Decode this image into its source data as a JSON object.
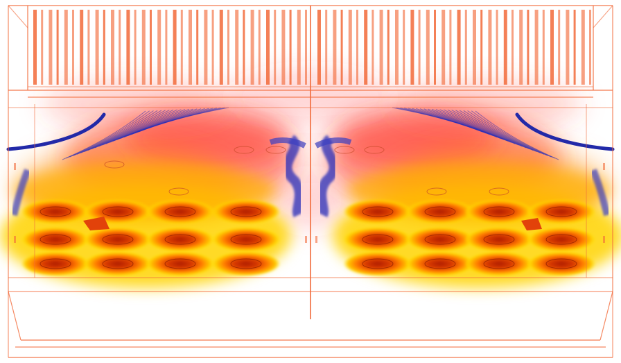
{
  "scene": {
    "colors": {
      "wireframe": "#f26a3a",
      "background": "#ffffff",
      "hot_core": "#c62400",
      "hot_mid": "#ff6a00",
      "warm": "#ffd400",
      "faint": "#ff2a1f",
      "streamline": "#2a2fb8"
    },
    "burner_grid": {
      "rows": 3,
      "columns_per_side": 4,
      "sides": 2
    },
    "elements": [
      "wireframe-frame-icon",
      "heat-plume-icon",
      "streamline-icon",
      "burner-flame-icon"
    ]
  }
}
